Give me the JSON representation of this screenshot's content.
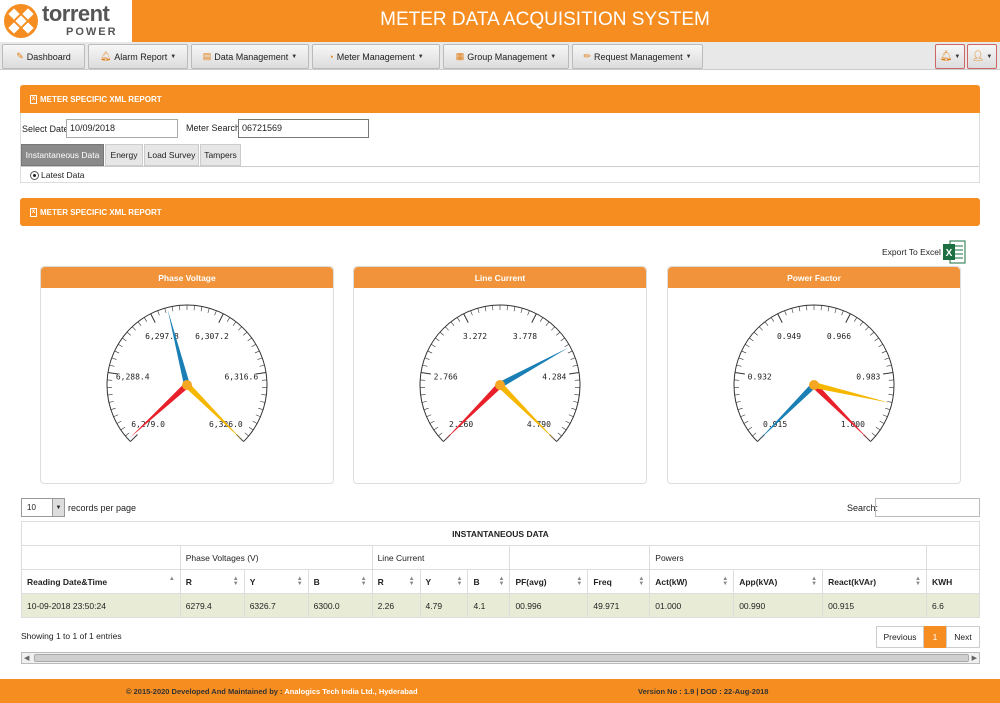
{
  "app": {
    "logo_text": "torrent",
    "logo_subtext": "POWER",
    "title": "METER DATA ACQUISITION SYSTEM"
  },
  "nav": {
    "items": [
      {
        "label": "Dashboard",
        "icon": "edit-icon"
      },
      {
        "label": "Alarm Report",
        "icon": "bell-icon"
      },
      {
        "label": "Data Management",
        "icon": "folder-icon"
      },
      {
        "label": "Meter Management",
        "icon": "dashboard-icon"
      },
      {
        "label": "Group Management",
        "icon": "group-icon"
      },
      {
        "label": "Request Management",
        "icon": "pencil-icon"
      }
    ],
    "right_icons": [
      "bell-icon",
      "user-icon"
    ]
  },
  "report_panel": {
    "title": "METER SPECIFIC XML REPORT",
    "select_date_label": "Select Date",
    "select_date_value": "10/09/2018",
    "meter_search_label": "Meter Search",
    "meter_search_value": "06721569",
    "tabs": [
      "Instantaneous Data",
      "Energy",
      "Load Survey",
      "Tampers"
    ],
    "active_tab": "Instantaneous Data",
    "radio_label": "Latest Data"
  },
  "report_panel2": {
    "title": "METER SPECIFIC XML REPORT"
  },
  "export": {
    "label": "Export To Excel"
  },
  "gauges": [
    {
      "title": "Phase Voltage",
      "ticks": [
        "6,279.0",
        "6,288.4",
        "6,297.8",
        "6,307.2",
        "6,316.6",
        "6,326.0"
      ],
      "min": 6279.0,
      "max": 6326.0,
      "needles": {
        "R": 6279.4,
        "Y": 6326.7,
        "B": 6300.0
      }
    },
    {
      "title": "Line Current",
      "ticks": [
        "2.260",
        "2.766",
        "3.272",
        "3.778",
        "4.284",
        "4.790"
      ],
      "min": 2.26,
      "max": 4.79,
      "needles": {
        "R": 2.26,
        "Y": 4.79,
        "B": 4.1
      }
    },
    {
      "title": "Power Factor",
      "ticks": [
        "0.915",
        "0.932",
        "0.949",
        "0.966",
        "0.983",
        "1.000"
      ],
      "min": 0.915,
      "max": 1.0,
      "needles": {
        "R": 1.0,
        "Y": 0.99,
        "B": 0.915
      }
    }
  ],
  "colors": {
    "accent": "#f58d20",
    "needle_r": "#e8202a",
    "needle_y": "#f5b700",
    "needle_b": "#1a7fb5"
  },
  "table": {
    "page_size": "10",
    "records_label": "records per page",
    "search_label": "Search:",
    "caption": "INSTANTANEOUS DATA",
    "groups": [
      "",
      "Phase Voltages (V)",
      "Line Current",
      "",
      "Powers",
      ""
    ],
    "columns": [
      "Reading Date&Time",
      "R",
      "Y",
      "B",
      "R",
      "Y",
      "B",
      "PF(avg)",
      "Freq",
      "Act(kW)",
      "App(kVA)",
      "React(kVAr)",
      "KWH"
    ],
    "rows": [
      [
        "10-09-2018 23:50:24",
        "6279.4",
        "6326.7",
        "6300.0",
        "2.26",
        "4.79",
        "4.1",
        "00.996",
        "49.971",
        "01.000",
        "00.990",
        "00.915",
        "6.6"
      ]
    ],
    "showing": "Showing 1 to 1 of 1 entries",
    "pager": {
      "previous": "Previous",
      "page": "1",
      "next": "Next"
    }
  },
  "footer": {
    "left_prefix": "© 2015-2020 Developed And Maintained by :",
    "left_company": "Analogics Tech India Ltd., Hyderabad",
    "right": "Version No : 1.9 | DOD : 22-Aug-2018"
  }
}
